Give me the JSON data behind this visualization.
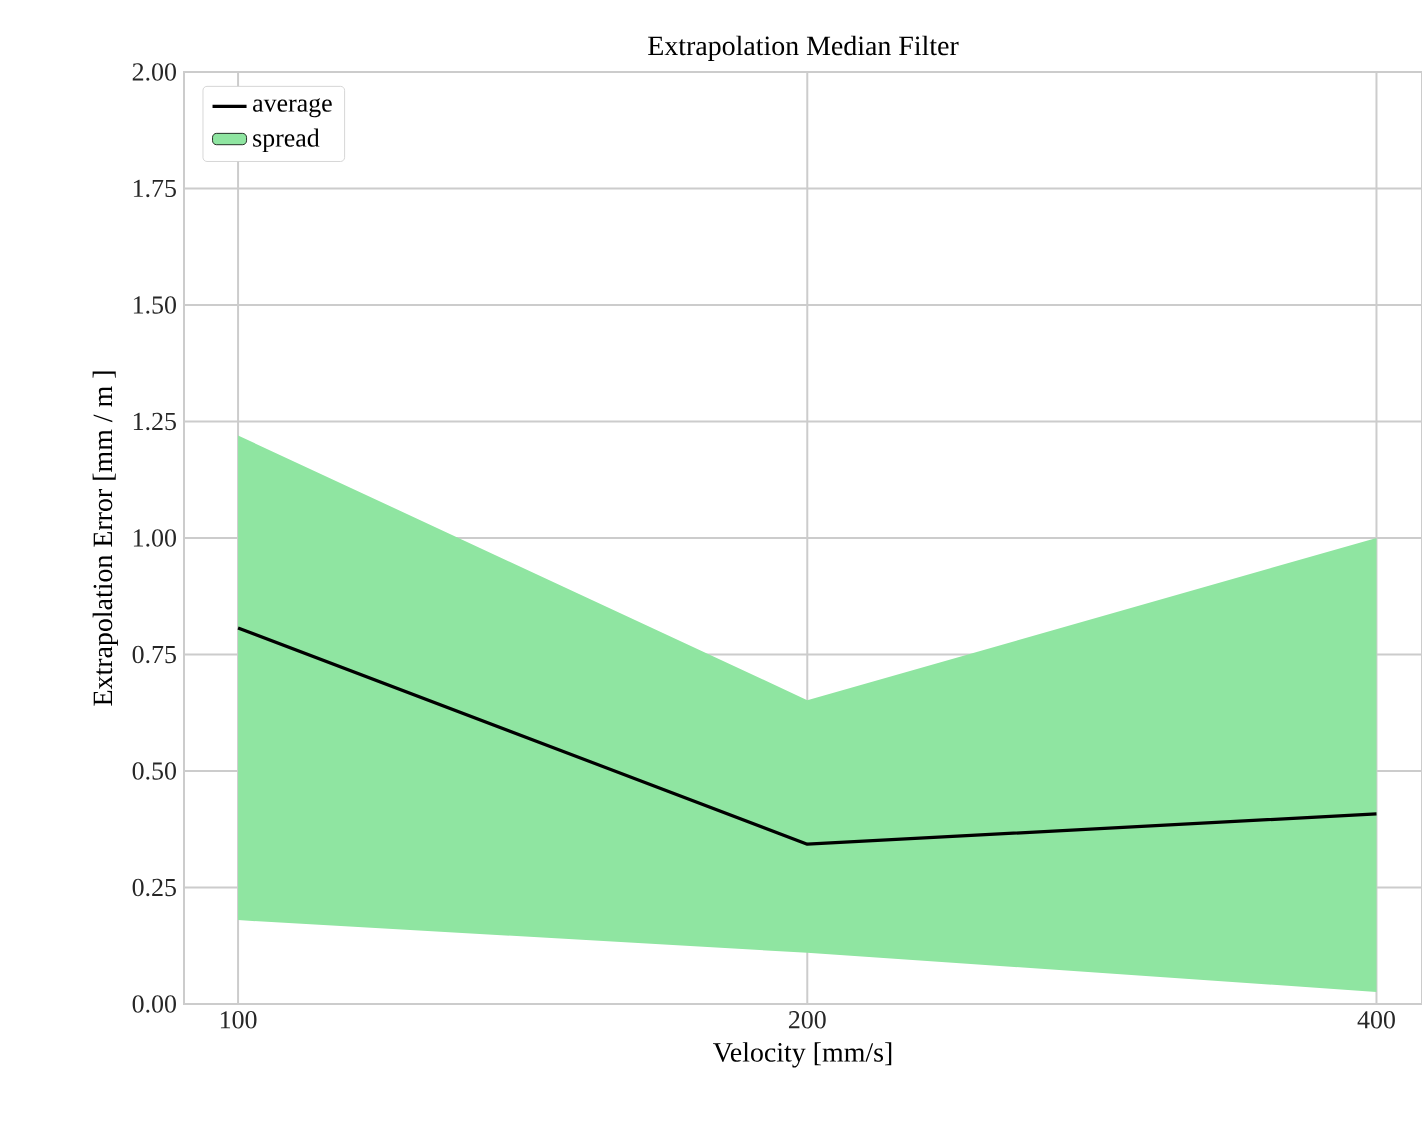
{
  "chart_data": {
    "type": "line",
    "title": "Extrapolation Median Filter",
    "xlabel": "Velocity [mm/s]",
    "ylabel": "Extrapolation Error [mm / m ]",
    "categories": [
      "100",
      "200",
      "400"
    ],
    "series": [
      {
        "name": "average",
        "color": "#000000",
        "values": [
          0.807,
          0.343,
          0.408
        ],
        "lower": [
          0.18,
          0.11,
          0.026
        ],
        "upper": [
          1.22,
          0.652,
          1.0
        ]
      },
      {
        "name": "spread",
        "type": "area",
        "color": "#8fe5a1",
        "values": [
          null,
          null,
          null
        ]
      }
    ],
    "ylim": [
      0,
      2
    ],
    "yticks": [
      {
        "value": 0,
        "label": "0.00"
      },
      {
        "value": 0.25,
        "label": "0.25"
      },
      {
        "value": 0.5,
        "label": "0.50"
      },
      {
        "value": 0.75,
        "label": "0.75"
      },
      {
        "value": 1,
        "label": "1.00"
      },
      {
        "value": 1.25,
        "label": "1.25"
      },
      {
        "value": 1.5,
        "label": "1.50"
      },
      {
        "value": 1.75,
        "label": "1.75"
      },
      {
        "value": 2,
        "label": "2.00"
      }
    ],
    "grid": true,
    "legend": "top left"
  }
}
